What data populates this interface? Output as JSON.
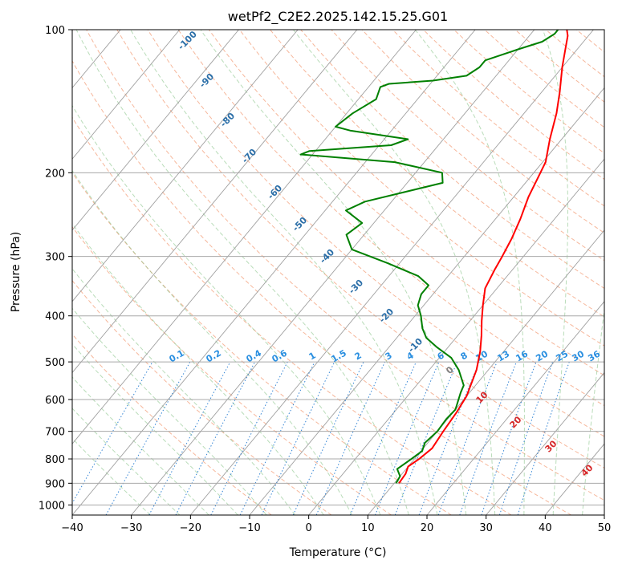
{
  "chart_data": {
    "type": "line",
    "title": "wetPf2_C2E2.2025.142.15.25.G01",
    "xlabel": "Temperature (°C)",
    "ylabel": "Pressure (hPa)",
    "xlim": [
      -40,
      50
    ],
    "ylim": [
      1050,
      100
    ],
    "y_scale": "log",
    "grid": true,
    "x_ticks": [
      -40,
      -30,
      -20,
      -10,
      0,
      10,
      20,
      30,
      40,
      50
    ],
    "y_ticks": [
      100,
      200,
      300,
      400,
      500,
      600,
      700,
      800,
      900,
      1000
    ],
    "series": [
      {
        "color": "#ff0000",
        "points": [
          [
            10.8,
            900
          ],
          [
            10.6,
            860
          ],
          [
            10.0,
            830
          ],
          [
            10.8,
            800
          ],
          [
            11.5,
            760
          ],
          [
            11.0,
            700
          ],
          [
            10.6,
            640
          ],
          [
            10.0,
            590
          ],
          [
            8.0,
            520
          ],
          [
            6.0,
            475
          ],
          [
            4.0,
            440
          ],
          [
            2.0,
            410
          ],
          [
            0.0,
            380
          ],
          [
            -2.0,
            350
          ],
          [
            -3.0,
            320
          ],
          [
            -3.6,
            300
          ],
          [
            -4.5,
            275
          ],
          [
            -5.8,
            250
          ],
          [
            -7.5,
            225
          ],
          [
            -8.6,
            205
          ],
          [
            -9.5,
            190
          ],
          [
            -12.0,
            170
          ],
          [
            -14.5,
            150
          ],
          [
            -17.0,
            135
          ],
          [
            -20.0,
            120
          ],
          [
            -22.0,
            110
          ],
          [
            -23.5,
            103
          ],
          [
            -24.5,
            100
          ]
        ]
      },
      {
        "color": "#008000",
        "points": [
          [
            10.3,
            900
          ],
          [
            10.0,
            870
          ],
          [
            8.5,
            840
          ],
          [
            9.5,
            800
          ],
          [
            10.2,
            770
          ],
          [
            9.5,
            740
          ],
          [
            10.0,
            700
          ],
          [
            9.8,
            660
          ],
          [
            10.0,
            630
          ],
          [
            8.5,
            580
          ],
          [
            8.0,
            560
          ],
          [
            5.0,
            520
          ],
          [
            2.0,
            490
          ],
          [
            -2.0,
            465
          ],
          [
            -5.0,
            445
          ],
          [
            -7.0,
            425
          ],
          [
            -9.0,
            400
          ],
          [
            -11.0,
            380
          ],
          [
            -12.0,
            360
          ],
          [
            -12.0,
            345
          ],
          [
            -15.0,
            330
          ],
          [
            -22.0,
            310
          ],
          [
            -30.0,
            290
          ],
          [
            -33.0,
            270
          ],
          [
            -32.0,
            255
          ],
          [
            -36.5,
            240
          ],
          [
            -34.5,
            230
          ],
          [
            -24.0,
            210
          ],
          [
            -25.5,
            200
          ],
          [
            -35.0,
            190
          ],
          [
            -52.0,
            183
          ],
          [
            -51.0,
            180
          ],
          [
            -38.0,
            175
          ],
          [
            -36.0,
            170
          ],
          [
            -47.0,
            163
          ],
          [
            -50.0,
            160
          ],
          [
            -49.0,
            150
          ],
          [
            -47.0,
            140
          ],
          [
            -48.0,
            132
          ],
          [
            -47.0,
            130
          ],
          [
            -40.0,
            128
          ],
          [
            -35.0,
            125
          ],
          [
            -34.0,
            120
          ],
          [
            -34.0,
            116
          ],
          [
            -30.0,
            110
          ],
          [
            -27.0,
            106
          ],
          [
            -26.0,
            102
          ],
          [
            -26.0,
            100
          ]
        ]
      }
    ],
    "isotherm_labels": [
      "-100",
      "-90",
      "-80",
      "-70",
      "-60",
      "-50",
      "-40",
      "-30",
      "-20",
      "-10"
    ],
    "mixing_ratio_labels": [
      "0.1",
      "0.2",
      "0.4",
      "0.6",
      "1",
      "1.5",
      "2",
      "3",
      "4",
      "6",
      "8",
      "10",
      "13",
      "16",
      "20",
      "25",
      "30",
      "36"
    ],
    "moist_adiabat_labels": [
      "0",
      "10",
      "20",
      "30",
      "40"
    ]
  }
}
